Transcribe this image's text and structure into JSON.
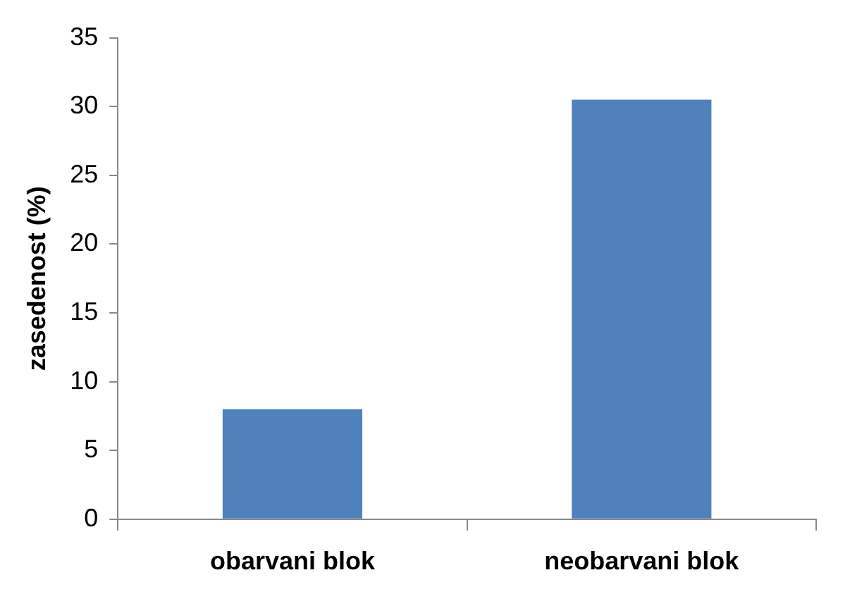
{
  "chart_data": {
    "type": "bar",
    "ylabel": "zasedenost (%)",
    "categories": [
      "obarvani blok",
      "neobarvani blok"
    ],
    "values": [
      8.0,
      30.5
    ],
    "color": "#4f81bd",
    "ylim": [
      0,
      35
    ],
    "yticks": [
      0,
      5,
      10,
      15,
      20,
      25,
      30,
      35
    ],
    "grid": false,
    "legend": false
  }
}
